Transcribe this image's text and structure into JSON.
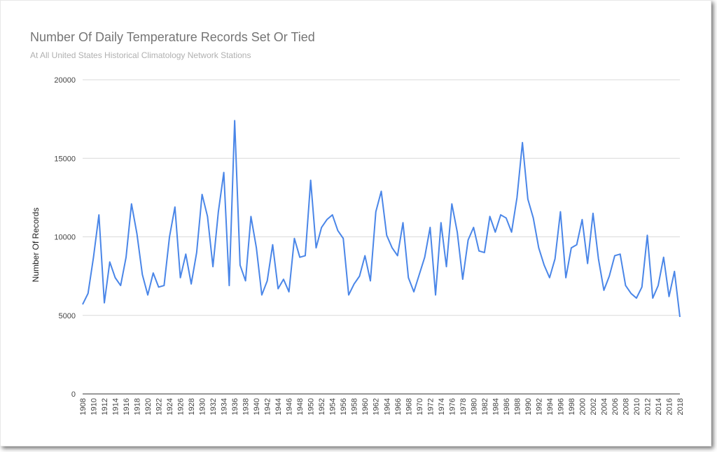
{
  "chart_data": {
    "type": "line",
    "title": "Number Of Daily Temperature Records Set Or Tied",
    "subtitle": "At All United States Historical Climatology Network Stations",
    "xlabel": "",
    "ylabel": "Number Of Records",
    "ylim": [
      0,
      20000
    ],
    "y_ticks": [
      0,
      5000,
      10000,
      15000,
      20000
    ],
    "x_tick_labels": [
      "1908",
      "1910",
      "1912",
      "1914",
      "1916",
      "1918",
      "1920",
      "1922",
      "1924",
      "1926",
      "1928",
      "1930",
      "1932",
      "1934",
      "1936",
      "1938",
      "1940",
      "1942",
      "1944",
      "1946",
      "1948",
      "1950",
      "1952",
      "1954",
      "1956",
      "1958",
      "1960",
      "1962",
      "1964",
      "1966",
      "1968",
      "1970",
      "1972",
      "1974",
      "1976",
      "1978",
      "1980",
      "1982",
      "1984",
      "1986",
      "1988",
      "1990",
      "1992",
      "1994",
      "1996",
      "1998",
      "2000",
      "2002",
      "2004",
      "2006",
      "2008",
      "2010",
      "2012",
      "2014",
      "2016",
      "2018"
    ],
    "grid": true,
    "legend": "none",
    "line_color": "#4a86e8",
    "x": [
      1908,
      1909,
      1910,
      1911,
      1912,
      1913,
      1914,
      1915,
      1916,
      1917,
      1918,
      1919,
      1920,
      1921,
      1922,
      1923,
      1924,
      1925,
      1926,
      1927,
      1928,
      1929,
      1930,
      1931,
      1932,
      1933,
      1934,
      1935,
      1936,
      1937,
      1938,
      1939,
      1940,
      1941,
      1942,
      1943,
      1944,
      1945,
      1946,
      1947,
      1948,
      1949,
      1950,
      1951,
      1952,
      1953,
      1954,
      1955,
      1956,
      1957,
      1958,
      1959,
      1960,
      1961,
      1962,
      1963,
      1964,
      1965,
      1966,
      1967,
      1968,
      1969,
      1970,
      1971,
      1972,
      1973,
      1974,
      1975,
      1976,
      1977,
      1978,
      1979,
      1980,
      1981,
      1982,
      1983,
      1984,
      1985,
      1986,
      1987,
      1988,
      1989,
      1990,
      1991,
      1992,
      1993,
      1994,
      1995,
      1996,
      1997,
      1998,
      1999,
      2000,
      2001,
      2002,
      2003,
      2004,
      2005,
      2006,
      2007,
      2008,
      2009,
      2010,
      2011,
      2012,
      2013,
      2014,
      2015,
      2016,
      2017,
      2018
    ],
    "series": [
      {
        "values": [
          5700,
          6400,
          8700,
          11400,
          5800,
          8400,
          7400,
          6900,
          8700,
          12100,
          10200,
          7600,
          6300,
          7700,
          6800,
          6900,
          10000,
          11900,
          7400,
          8900,
          7000,
          9000,
          12700,
          11300,
          8100,
          11600,
          14100,
          6900,
          17400,
          8200,
          7200,
          11300,
          9300,
          6300,
          7200,
          9500,
          6700,
          7300,
          6500,
          9900,
          8700,
          8800,
          13600,
          9300,
          10600,
          11100,
          11400,
          10400,
          9900,
          6300,
          7000,
          7500,
          8800,
          7200,
          11600,
          12900,
          10100,
          9300,
          8800,
          10900,
          7400,
          6500,
          7600,
          8700,
          10600,
          6300,
          10900,
          8100,
          12100,
          10300,
          7300,
          9800,
          10600,
          9100,
          9000,
          11300,
          10300,
          11400,
          11200,
          10300,
          12500,
          16000,
          12400,
          11200,
          9300,
          8200,
          7400,
          8600,
          11600,
          7400,
          9300,
          9500,
          11100,
          8300,
          11500,
          8600,
          6600,
          7500,
          8800,
          8900,
          6900,
          6400,
          6100,
          6800,
          10100,
          6100,
          6900,
          8700,
          6200,
          7800,
          4900
        ]
      }
    ]
  }
}
